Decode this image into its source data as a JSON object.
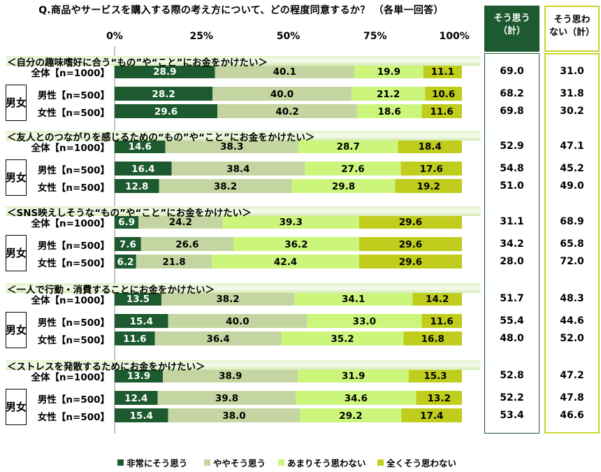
{
  "title": "Q.商品やサービスを購入する際の考え方について、どの程度同意するか？ （各単一回答）",
  "axis_ticks": [
    "0%",
    "25%",
    "50%",
    "75%",
    "100%"
  ],
  "summary_headers": {
    "agree": [
      "そう思う",
      "（計）"
    ],
    "disagree": [
      "そう思わ",
      "ない（計）"
    ]
  },
  "gender_group_label": [
    "男",
    "女"
  ],
  "colors": {
    "s1": "#1d5a2f",
    "s2": "#c4d5a1",
    "s3": "#ccf67b",
    "s4": "#c0cd1c",
    "agree_header": "#1d5a2f",
    "disagree_border": "#c9d62a"
  },
  "legend": [
    {
      "label": "非常にそう思う",
      "color": "#1d5a2f"
    },
    {
      "label": "ややそう思う",
      "color": "#c4d5a1"
    },
    {
      "label": "あまりそう思わない",
      "color": "#ccf67b"
    },
    {
      "label": "全くそう思わない",
      "color": "#c0cd1c"
    }
  ],
  "chart_data": {
    "type": "bar",
    "orientation": "horizontal-stacked-100",
    "xlim": [
      0,
      100
    ],
    "series_names": [
      "非常にそう思う",
      "ややそう思う",
      "あまりそう思わない",
      "全くそう思わない"
    ],
    "sections": [
      {
        "title": "＜自分の趣味嗜好に合う“もの”や“こと”にお金をかけたい＞",
        "rows": [
          {
            "label": "全体【n=1000】",
            "values": [
              28.9,
              40.1,
              19.9,
              11.1
            ],
            "agree_total": "69.0",
            "disagree_total": "31.0"
          },
          {
            "label": "男性【n=500】",
            "values": [
              28.2,
              40.0,
              21.2,
              10.6
            ],
            "agree_total": "68.2",
            "disagree_total": "31.8"
          },
          {
            "label": "女性【n=500】",
            "values": [
              29.6,
              40.2,
              18.6,
              11.6
            ],
            "agree_total": "69.8",
            "disagree_total": "30.2"
          }
        ]
      },
      {
        "title": "＜友人とのつながりを感じるための“もの”や“こと”にお金をかけたい＞",
        "rows": [
          {
            "label": "全体【n=1000】",
            "values": [
              14.6,
              38.3,
              28.7,
              18.4
            ],
            "agree_total": "52.9",
            "disagree_total": "47.1"
          },
          {
            "label": "男性【n=500】",
            "values": [
              16.4,
              38.4,
              27.6,
              17.6
            ],
            "agree_total": "54.8",
            "disagree_total": "45.2"
          },
          {
            "label": "女性【n=500】",
            "values": [
              12.8,
              38.2,
              29.8,
              19.2
            ],
            "agree_total": "51.0",
            "disagree_total": "49.0"
          }
        ]
      },
      {
        "title": "＜SNS映えしそうな“もの”や“こと”にお金をかけたい＞",
        "rows": [
          {
            "label": "全体【n=1000】",
            "values": [
              6.9,
              24.2,
              39.3,
              29.6
            ],
            "agree_total": "31.1",
            "disagree_total": "68.9"
          },
          {
            "label": "男性【n=500】",
            "values": [
              7.6,
              26.6,
              36.2,
              29.6
            ],
            "agree_total": "34.2",
            "disagree_total": "65.8"
          },
          {
            "label": "女性【n=500】",
            "values": [
              6.2,
              21.8,
              42.4,
              29.6
            ],
            "agree_total": "28.0",
            "disagree_total": "72.0"
          }
        ]
      },
      {
        "title": "＜一人で行動・消費することにお金をかけたい＞",
        "rows": [
          {
            "label": "全体【n=1000】",
            "values": [
              13.5,
              38.2,
              34.1,
              14.2
            ],
            "agree_total": "51.7",
            "disagree_total": "48.3"
          },
          {
            "label": "男性【n=500】",
            "values": [
              15.4,
              40.0,
              33.0,
              11.6
            ],
            "agree_total": "55.4",
            "disagree_total": "44.6"
          },
          {
            "label": "女性【n=500】",
            "values": [
              11.6,
              36.4,
              35.2,
              16.8
            ],
            "agree_total": "48.0",
            "disagree_total": "52.0"
          }
        ]
      },
      {
        "title": "＜ストレスを発散するためにお金をかけたい＞",
        "rows": [
          {
            "label": "全体【n=1000】",
            "values": [
              13.9,
              38.9,
              31.9,
              15.3
            ],
            "agree_total": "52.8",
            "disagree_total": "47.2"
          },
          {
            "label": "男性【n=500】",
            "values": [
              12.4,
              39.8,
              34.6,
              13.2
            ],
            "agree_total": "52.2",
            "disagree_total": "47.8"
          },
          {
            "label": "女性【n=500】",
            "values": [
              15.4,
              38.0,
              29.2,
              17.4
            ],
            "agree_total": "53.4",
            "disagree_total": "46.6"
          }
        ]
      }
    ]
  }
}
